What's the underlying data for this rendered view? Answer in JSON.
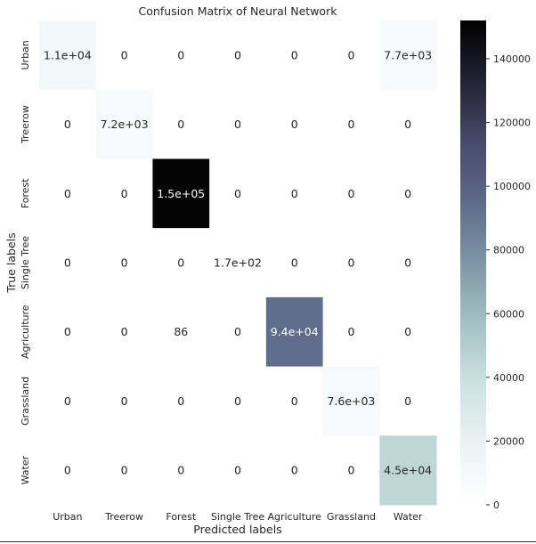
{
  "chart_data": {
    "type": "heatmap",
    "title": "Confusion Matrix of Neural Network",
    "xlabel": "Predicted labels",
    "ylabel": "True labels",
    "x_categories": [
      "Urban",
      "Treerow",
      "Forest",
      "Single Tree",
      "Agriculture",
      "Grassland",
      "Water"
    ],
    "y_categories": [
      "Urban",
      "Treerow",
      "Forest",
      "Single Tree",
      "Agriculture",
      "Grassland",
      "Water"
    ],
    "values": [
      [
        11000,
        0,
        0,
        0,
        0,
        0,
        7700
      ],
      [
        0,
        7200,
        0,
        0,
        0,
        0,
        0
      ],
      [
        0,
        0,
        150000,
        0,
        0,
        0,
        0
      ],
      [
        0,
        0,
        0,
        170,
        0,
        0,
        0
      ],
      [
        0,
        0,
        86,
        0,
        94000,
        0,
        0
      ],
      [
        0,
        0,
        0,
        0,
        0,
        7600,
        0
      ],
      [
        0,
        0,
        0,
        0,
        0,
        0,
        45000
      ]
    ],
    "labels": [
      [
        "1.1e+04",
        "0",
        "0",
        "0",
        "0",
        "0",
        "7.7e+03"
      ],
      [
        "0",
        "7.2e+03",
        "0",
        "0",
        "0",
        "0",
        "0"
      ],
      [
        "0",
        "0",
        "1.5e+05",
        "0",
        "0",
        "0",
        "0"
      ],
      [
        "0",
        "0",
        "0",
        "1.7e+02",
        "0",
        "0",
        "0"
      ],
      [
        "0",
        "0",
        "86",
        "0",
        "9.4e+04",
        "0",
        "0"
      ],
      [
        "0",
        "0",
        "0",
        "0",
        "0",
        "7.6e+03",
        "0"
      ],
      [
        "0",
        "0",
        "0",
        "0",
        "0",
        "0",
        "4.5e+04"
      ]
    ],
    "colorbar": {
      "min": 0,
      "max": 152000,
      "ticks": [
        0,
        20000,
        40000,
        60000,
        80000,
        100000,
        120000,
        140000
      ],
      "tick_labels": [
        "0",
        "20000",
        "40000",
        "60000",
        "80000",
        "100000",
        "120000",
        "140000"
      ]
    },
    "colormap": "bone_r",
    "grid": false
  }
}
